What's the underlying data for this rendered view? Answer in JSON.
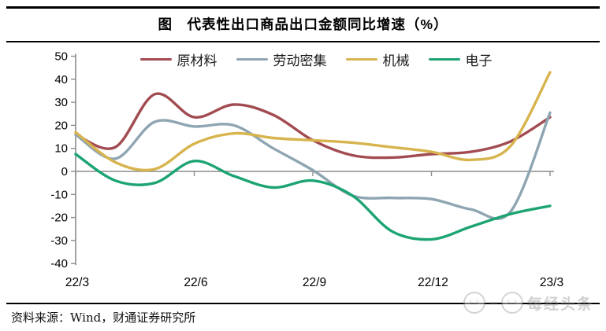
{
  "header": {
    "title": "图　代表性出口商品出口金额同比增速（%）"
  },
  "chart_data": {
    "type": "line",
    "x": [
      "22/3",
      "22/4",
      "22/5",
      "22/6",
      "22/7",
      "22/8",
      "22/9",
      "22/10",
      "22/11",
      "22/12",
      "23/1",
      "23/2",
      "23/3"
    ],
    "x_axis_shown_labels": [
      "22/3",
      "22/6",
      "22/9",
      "22/12",
      "23/3"
    ],
    "ylim": [
      -40,
      50
    ],
    "ytick_step": 10,
    "yticks": [
      50,
      40,
      30,
      20,
      10,
      0,
      -10,
      -20,
      -30,
      -40
    ],
    "grid": "zero-line-only",
    "legend_position": "top",
    "series": [
      {
        "name": "原材料",
        "color": "#A24B50",
        "values": [
          16,
          10.5,
          33.5,
          23.5,
          29,
          24.5,
          13.5,
          7,
          6,
          7.5,
          8.5,
          13,
          23.5
        ]
      },
      {
        "name": "劳动密集",
        "color": "#8EA5B2",
        "values": [
          16,
          5.5,
          21.5,
          19.5,
          20,
          10,
          0.5,
          -10.5,
          -11.5,
          -12,
          -16.5,
          -17.5,
          25.5
        ]
      },
      {
        "name": "机械",
        "color": "#D7B44D",
        "values": [
          17,
          4,
          1,
          12,
          16.5,
          14.5,
          13.5,
          12.5,
          10.5,
          8.5,
          5,
          11,
          43
        ]
      },
      {
        "name": "电子",
        "color": "#1CA472",
        "values": [
          7.5,
          -4,
          -5,
          4.5,
          -2,
          -7,
          -4,
          -10.5,
          -26,
          -29.5,
          -24,
          -18.5,
          -15
        ]
      }
    ]
  },
  "footer": {
    "source_text": "资料来源：Wind，财通证券研究所"
  },
  "watermark": {
    "text": "每经头条"
  },
  "colors": {
    "axis": "#8c8c8c",
    "tick_text": "#000000"
  }
}
